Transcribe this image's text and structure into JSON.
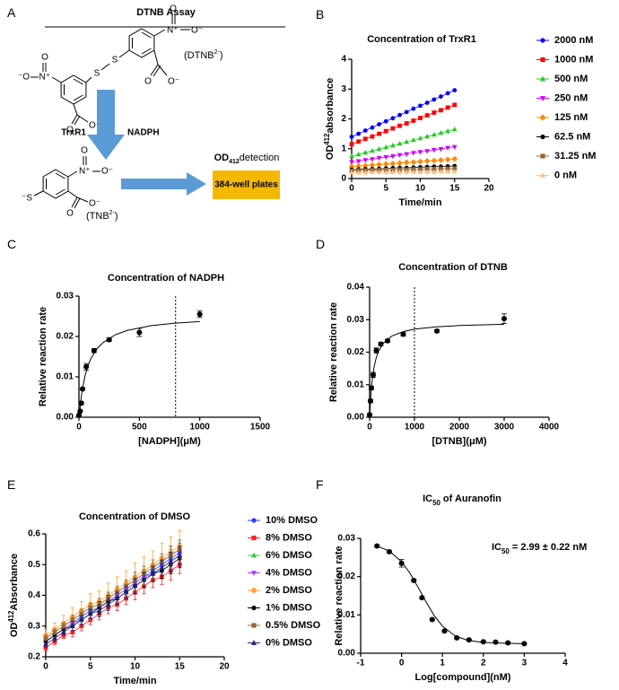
{
  "diagram": {
    "panel": "A",
    "title": "DTNB Assay",
    "dtnb_label": [
      "(DTNB",
      "2-",
      ")"
    ],
    "tnb_label": [
      "(TNB",
      "2-",
      ")"
    ],
    "enzyme": "TrxR1",
    "cofactor": "NADPH",
    "detection": [
      "OD",
      "412",
      "detection"
    ],
    "plate": "384-well plates",
    "atoms": [
      "O",
      "O⁻",
      "N⁺",
      "S",
      "⁻O",
      "⁻S"
    ]
  },
  "chart_data": [
    {
      "type": "line",
      "panel": "B",
      "title": "Concentration of TrxR1",
      "xlabel": "Time/min",
      "ylabel": [
        "OD",
        "412",
        "absorbance"
      ],
      "x": [
        0,
        1,
        2,
        3,
        4,
        5,
        6,
        7,
        8,
        9,
        10,
        11,
        12,
        13,
        14,
        15
      ],
      "xlim": [
        0,
        20
      ],
      "xticks": [
        0,
        5,
        10,
        15,
        20
      ],
      "ylim": [
        0,
        4
      ],
      "yticks": [
        0,
        1,
        2,
        3,
        4
      ],
      "legend": "right",
      "series": [
        {
          "name": "2000 nM",
          "color": "#0000ff",
          "marker": "circle",
          "values": [
            1.4,
            1.5,
            1.61,
            1.71,
            1.82,
            1.92,
            2.02,
            2.13,
            2.23,
            2.34,
            2.44,
            2.54,
            2.65,
            2.75,
            2.86,
            2.96
          ]
        },
        {
          "name": "1000 nM",
          "color": "#ff0000",
          "marker": "square",
          "values": [
            1.15,
            1.24,
            1.33,
            1.41,
            1.5,
            1.59,
            1.68,
            1.77,
            1.85,
            1.94,
            2.03,
            2.12,
            2.21,
            2.29,
            2.38,
            2.47
          ]
        },
        {
          "name": "500 nM",
          "color": "#22cc22",
          "marker": "triangle",
          "values": [
            0.75,
            0.81,
            0.87,
            0.93,
            0.99,
            1.05,
            1.11,
            1.17,
            1.23,
            1.29,
            1.35,
            1.41,
            1.47,
            1.53,
            1.59,
            1.65
          ]
        },
        {
          "name": "250 nM",
          "color": "#cc00ff",
          "marker": "triangle-down",
          "values": [
            0.55,
            0.58,
            0.62,
            0.65,
            0.69,
            0.72,
            0.75,
            0.79,
            0.82,
            0.86,
            0.89,
            0.92,
            0.96,
            0.99,
            1.03,
            1.06
          ]
        },
        {
          "name": "125 nM",
          "color": "#ff8800",
          "marker": "diamond",
          "values": [
            0.4,
            0.42,
            0.43,
            0.45,
            0.47,
            0.49,
            0.5,
            0.52,
            0.54,
            0.55,
            0.57,
            0.59,
            0.6,
            0.62,
            0.64,
            0.66
          ]
        },
        {
          "name": "62.5 nM",
          "color": "#000000",
          "marker": "circle",
          "values": [
            0.3,
            0.31,
            0.32,
            0.32,
            0.33,
            0.34,
            0.35,
            0.36,
            0.36,
            0.37,
            0.38,
            0.39,
            0.4,
            0.4,
            0.41,
            0.42
          ]
        },
        {
          "name": "31.25 nM",
          "color": "#996633",
          "marker": "square",
          "values": [
            0.26,
            0.27,
            0.27,
            0.28,
            0.28,
            0.29,
            0.29,
            0.3,
            0.3,
            0.31,
            0.31,
            0.32,
            0.32,
            0.33,
            0.33,
            0.34
          ]
        },
        {
          "name": "0 nM",
          "color": "#ffc080",
          "marker": "triangle",
          "values": [
            0.2,
            0.2,
            0.2,
            0.21,
            0.21,
            0.21,
            0.21,
            0.21,
            0.22,
            0.22,
            0.22,
            0.22,
            0.22,
            0.23,
            0.23,
            0.23
          ]
        }
      ]
    },
    {
      "type": "scatter",
      "panel": "C",
      "title": "Concentration of NADPH",
      "xlabel": "[NADPH](μM)",
      "ylabel": "Relative reaction rate",
      "color": "#000000",
      "marker": "circle",
      "x": [
        0,
        10,
        20,
        30,
        60,
        125,
        250,
        500,
        1000
      ],
      "values": [
        0.0005,
        0.0015,
        0.0035,
        0.007,
        0.0125,
        0.0165,
        0.0192,
        0.021,
        0.0255
      ],
      "errors": [
        0.0002,
        0.0002,
        0.0003,
        0.0003,
        0.0008,
        0.0005,
        0.0004,
        0.001,
        0.0008
      ],
      "fit": {
        "x": [
          0,
          25,
          50,
          75,
          100,
          150,
          200,
          300,
          400,
          600,
          800,
          1000
        ],
        "values": [
          0,
          0.0064,
          0.0102,
          0.0128,
          0.0146,
          0.017,
          0.0185,
          0.0204,
          0.0215,
          0.0227,
          0.0233,
          0.0237
        ]
      },
      "vline": 800,
      "xlim": [
        0,
        1500
      ],
      "xticks": [
        0,
        500,
        1000,
        1500
      ],
      "ylim": [
        0,
        0.03
      ],
      "yticks": [
        {
          "value": 0,
          "label": "0.00"
        },
        0.01,
        0.02,
        0.03
      ]
    },
    {
      "type": "scatter",
      "panel": "D",
      "title": "Concentration of DTNB",
      "xlabel": "[DTNB](μM)",
      "ylabel": "Relative reaction rate",
      "color": "#000000",
      "marker": "circle",
      "x": [
        0,
        20,
        40,
        80,
        150,
        250,
        400,
        750,
        1500,
        3000
      ],
      "values": [
        0.0008,
        0.005,
        0.009,
        0.013,
        0.0205,
        0.0225,
        0.0235,
        0.0255,
        0.0265,
        0.0303
      ],
      "errors": [
        0.0003,
        0.0005,
        0.0005,
        0.0008,
        0.0008,
        0.0005,
        0.0005,
        0.0005,
        0.0004,
        0.0015
      ],
      "fit": {
        "x": [
          0,
          25,
          50,
          100,
          150,
          200,
          300,
          500,
          750,
          1000,
          1500,
          2000,
          3000
        ],
        "values": [
          0,
          0.0064,
          0.0105,
          0.0155,
          0.0184,
          0.0203,
          0.0227,
          0.025,
          0.0263,
          0.0271,
          0.0278,
          0.0282,
          0.0286
        ]
      },
      "vline": 1000,
      "xlim": [
        0,
        4000
      ],
      "xticks": [
        0,
        1000,
        2000,
        3000,
        4000
      ],
      "ylim": [
        0,
        0.04
      ],
      "yticks": [
        {
          "value": 0,
          "label": "0.00"
        },
        0.01,
        0.02,
        0.03,
        0.04
      ]
    },
    {
      "type": "line",
      "panel": "E",
      "title": "Concentration of DMSO",
      "xlabel": "Time/min",
      "ylabel": [
        "OD",
        "412",
        "Absorbance"
      ],
      "x": [
        0,
        1,
        2,
        3,
        4,
        5,
        6,
        7,
        8,
        9,
        10,
        11,
        12,
        13,
        14,
        15
      ],
      "xlim": [
        0,
        20
      ],
      "xticks": [
        0,
        5,
        10,
        15,
        20
      ],
      "ylim": [
        0.2,
        0.6
      ],
      "yticks": [
        0.2,
        0.3,
        0.4,
        0.5,
        0.6
      ],
      "legend": "right",
      "series": [
        {
          "name": "10% DMSO",
          "color": "#2040ff",
          "marker": "circle",
          "values": [
            0.25,
            0.27,
            0.29,
            0.31,
            0.33,
            0.35,
            0.36,
            0.38,
            0.4,
            0.42,
            0.44,
            0.46,
            0.48,
            0.5,
            0.52,
            0.54
          ],
          "errors": [
            0.01,
            0.01,
            0.01,
            0.015,
            0.015,
            0.015,
            0.02,
            0.02,
            0.02,
            0.02,
            0.025,
            0.025,
            0.025,
            0.025,
            0.03,
            0.03
          ]
        },
        {
          "name": "8% DMSO",
          "color": "#ff2020",
          "marker": "square",
          "values": [
            0.23,
            0.25,
            0.27,
            0.28,
            0.3,
            0.32,
            0.34,
            0.36,
            0.37,
            0.39,
            0.41,
            0.43,
            0.45,
            0.46,
            0.48,
            0.5
          ],
          "errors": [
            0.01,
            0.01,
            0.01,
            0.015,
            0.015,
            0.015,
            0.02,
            0.02,
            0.02,
            0.02,
            0.025,
            0.025,
            0.025,
            0.025,
            0.03,
            0.03
          ]
        },
        {
          "name": "6% DMSO",
          "color": "#33cc33",
          "marker": "triangle",
          "values": [
            0.26,
            0.28,
            0.3,
            0.32,
            0.34,
            0.36,
            0.37,
            0.39,
            0.41,
            0.43,
            0.45,
            0.47,
            0.49,
            0.51,
            0.53,
            0.55
          ],
          "errors": [
            0.01,
            0.01,
            0.01,
            0.015,
            0.015,
            0.015,
            0.02,
            0.02,
            0.02,
            0.02,
            0.025,
            0.025,
            0.025,
            0.025,
            0.03,
            0.03
          ]
        },
        {
          "name": "4% DMSO",
          "color": "#b040ff",
          "marker": "triangle-down",
          "values": [
            0.25,
            0.27,
            0.29,
            0.31,
            0.32,
            0.34,
            0.36,
            0.38,
            0.4,
            0.42,
            0.44,
            0.46,
            0.47,
            0.49,
            0.51,
            0.53
          ],
          "errors": [
            0.01,
            0.01,
            0.01,
            0.015,
            0.015,
            0.015,
            0.02,
            0.02,
            0.02,
            0.02,
            0.025,
            0.025,
            0.025,
            0.025,
            0.03,
            0.03
          ]
        },
        {
          "name": "2% DMSO",
          "color": "#ffa030",
          "marker": "diamond",
          "values": [
            0.27,
            0.29,
            0.31,
            0.33,
            0.35,
            0.37,
            0.38,
            0.4,
            0.42,
            0.44,
            0.46,
            0.48,
            0.5,
            0.52,
            0.54,
            0.56
          ],
          "errors": [
            0.02,
            0.02,
            0.025,
            0.03,
            0.03,
            0.035,
            0.035,
            0.04,
            0.04,
            0.04,
            0.045,
            0.045,
            0.045,
            0.05,
            0.05,
            0.05
          ]
        },
        {
          "name": "1% DMSO",
          "color": "#000000",
          "marker": "circle",
          "values": [
            0.25,
            0.27,
            0.29,
            0.3,
            0.32,
            0.34,
            0.36,
            0.38,
            0.39,
            0.41,
            0.43,
            0.45,
            0.47,
            0.48,
            0.5,
            0.52
          ],
          "errors": [
            0.01,
            0.01,
            0.01,
            0.015,
            0.015,
            0.015,
            0.02,
            0.02,
            0.02,
            0.02,
            0.025,
            0.025,
            0.025,
            0.025,
            0.03,
            0.03
          ]
        },
        {
          "name": "0.5% DMSO",
          "color": "#996633",
          "marker": "square",
          "values": [
            0.26,
            0.28,
            0.3,
            0.32,
            0.34,
            0.36,
            0.37,
            0.39,
            0.41,
            0.43,
            0.45,
            0.47,
            0.49,
            0.51,
            0.53,
            0.55
          ],
          "errors": [
            0.01,
            0.01,
            0.01,
            0.015,
            0.015,
            0.015,
            0.02,
            0.02,
            0.02,
            0.02,
            0.025,
            0.025,
            0.025,
            0.025,
            0.03,
            0.03
          ]
        },
        {
          "name": "0% DMSO",
          "color": "#1a237e",
          "marker": "triangle",
          "values": [
            0.24,
            0.26,
            0.28,
            0.3,
            0.32,
            0.34,
            0.35,
            0.37,
            0.39,
            0.41,
            0.43,
            0.45,
            0.47,
            0.49,
            0.51,
            0.53
          ],
          "errors": [
            0.01,
            0.01,
            0.01,
            0.015,
            0.015,
            0.015,
            0.02,
            0.02,
            0.02,
            0.02,
            0.025,
            0.025,
            0.025,
            0.025,
            0.03,
            0.03
          ]
        }
      ]
    },
    {
      "type": "scatter",
      "panel": "F",
      "title": [
        "IC",
        "50",
        " of Auranofin"
      ],
      "annotation": [
        "IC",
        "50",
        " = 2.99 ± 0.22 nM"
      ],
      "xlabel": "Log[compound](nM)",
      "ylabel": "Relative reaction rate",
      "color": "#000000",
      "marker": "circle",
      "x": [
        -0.6,
        -0.3,
        0,
        0.3,
        0.5,
        0.75,
        1.05,
        1.35,
        1.65,
        2,
        2.3,
        2.6,
        3
      ],
      "values": [
        0.028,
        0.0265,
        0.0235,
        0.019,
        0.0145,
        0.0088,
        0.0058,
        0.004,
        0.0035,
        0.003,
        0.0029,
        0.0027,
        0.0025
      ],
      "errors": [
        0.0003,
        0.0003,
        0.001,
        0.0003,
        0.0003,
        0.0003,
        0.0003,
        0.0002,
        0.0002,
        0.0002,
        0.0002,
        0.0002,
        0.0002
      ],
      "fit": {
        "x": [
          -0.6,
          -0.3,
          0,
          0.2,
          0.4,
          0.6,
          0.8,
          1,
          1.3,
          1.6,
          2,
          2.5,
          3
        ],
        "values": [
          0.028,
          0.0267,
          0.0239,
          0.021,
          0.0173,
          0.0134,
          0.0098,
          0.0071,
          0.0046,
          0.0034,
          0.0028,
          0.0026,
          0.0025
        ]
      },
      "xlim": [
        -1,
        4
      ],
      "xticks": [
        -1,
        0,
        1,
        2,
        3,
        4
      ],
      "ylim": [
        0,
        0.03
      ],
      "yticks": [
        {
          "value": 0,
          "label": "0.00"
        },
        0.01,
        0.02,
        0.03
      ]
    }
  ]
}
